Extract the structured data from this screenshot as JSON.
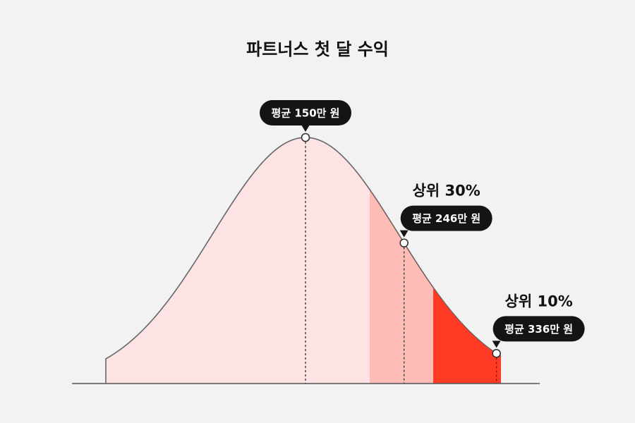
{
  "chart_data": {
    "type": "area",
    "title": "파트너스 첫 달 수익",
    "xlabel": "",
    "ylabel": "",
    "grid": false,
    "legend": "none",
    "distribution": "normal",
    "segments": [
      {
        "name": "base",
        "color": "#fde3e3"
      },
      {
        "name": "top-30",
        "color": "#fdbcb6"
      },
      {
        "name": "top-10",
        "color": "#ff3b25"
      }
    ],
    "markers": [
      {
        "label": "평균 150만 원",
        "value": 150,
        "header": ""
      },
      {
        "label": "평균 246만 원",
        "value": 246,
        "header": "상위 30%"
      },
      {
        "label": "평균 336만 원",
        "value": 336,
        "header": "상위 10%"
      }
    ]
  },
  "colors": {
    "curve": "#666666",
    "baseline": "#555555",
    "bubble": "#141414",
    "bubble_text": "#ffffff"
  }
}
